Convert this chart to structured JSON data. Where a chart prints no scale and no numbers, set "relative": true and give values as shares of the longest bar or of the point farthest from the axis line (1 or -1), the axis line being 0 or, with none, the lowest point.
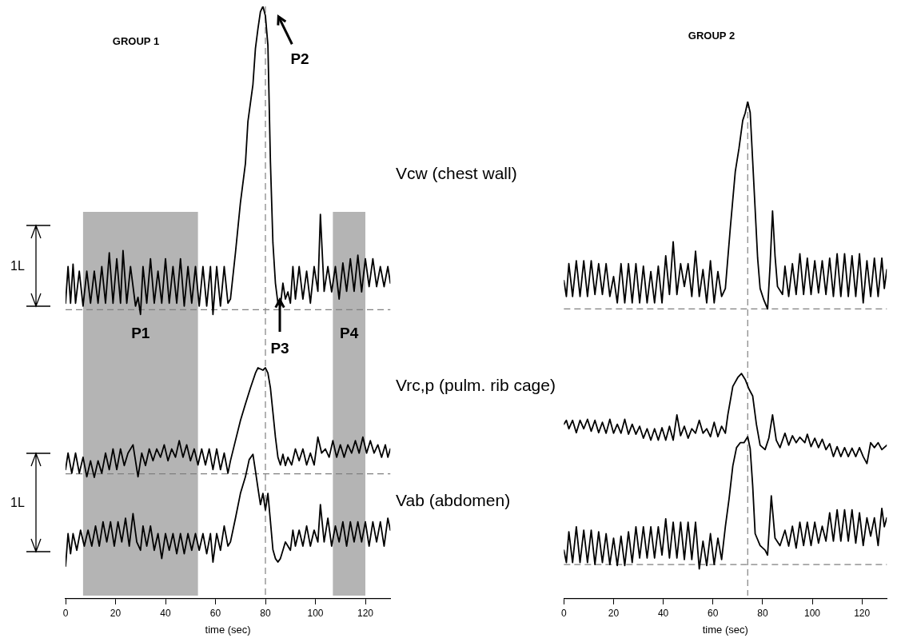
{
  "chart_data": [
    {
      "type": "line",
      "title": "GROUP 1",
      "xlabel": "time (sec)",
      "relative": true,
      "xlim": [
        0,
        130
      ],
      "xticks": [
        0,
        20,
        40,
        60,
        80,
        100,
        120
      ],
      "legend": false,
      "marker": "none",
      "line_style": "solid",
      "series": [
        {
          "name": "Vcw (chest wall)",
          "color": "#000000",
          "x": [
            0,
            1,
            2,
            3,
            4,
            5.5,
            7,
            8.5,
            10,
            11.5,
            13,
            14.5,
            16,
            17.5,
            19,
            20.5,
            22,
            23,
            24.5,
            26,
            28,
            29,
            30,
            31,
            32.5,
            34,
            35.5,
            37,
            38.5,
            40,
            41.5,
            43,
            44.5,
            46,
            47.5,
            49,
            50.5,
            52,
            53.5,
            55,
            56.5,
            58,
            59,
            60.5,
            62,
            63.5,
            65,
            66,
            68,
            70,
            72,
            73,
            75,
            76,
            77,
            78,
            79,
            80,
            81,
            82,
            83,
            84,
            85,
            86,
            87,
            88,
            89,
            90,
            91,
            92,
            93.5,
            95,
            96.5,
            98,
            99.5,
            101,
            102,
            103.5,
            105,
            106.5,
            108,
            109.5,
            111,
            112.5,
            114,
            115.5,
            117,
            118.5,
            120,
            121.5,
            123,
            124.5,
            126,
            127.5,
            129,
            130
          ],
          "values": [
            0.499,
            0.561,
            0.499,
            0.565,
            0.499,
            0.553,
            0.494,
            0.553,
            0.499,
            0.553,
            0.499,
            0.561,
            0.499,
            0.584,
            0.499,
            0.574,
            0.499,
            0.588,
            0.499,
            0.561,
            0.494,
            0.509,
            0.48,
            0.561,
            0.499,
            0.574,
            0.499,
            0.553,
            0.499,
            0.574,
            0.499,
            0.561,
            0.499,
            0.574,
            0.494,
            0.561,
            0.499,
            0.561,
            0.494,
            0.561,
            0.494,
            0.561,
            0.48,
            0.561,
            0.494,
            0.561,
            0.499,
            0.506,
            0.584,
            0.669,
            0.735,
            0.806,
            0.868,
            0.929,
            0.962,
            0.991,
            1,
            0.984,
            0.934,
            0.738,
            0.601,
            0.533,
            0.499,
            0.494,
            0.533,
            0.506,
            0.518,
            0.499,
            0.561,
            0.506,
            0.561,
            0.506,
            0.553,
            0.499,
            0.561,
            0.519,
            0.649,
            0.519,
            0.561,
            0.518,
            0.561,
            0.506,
            0.567,
            0.519,
            0.574,
            0.519,
            0.58,
            0.518,
            0.574,
            0.527,
            0.574,
            0.527,
            0.561,
            0.527,
            0.561,
            0.533
          ]
        },
        {
          "name": "Vrc,p (pulm. rib cage)",
          "color": "#000000",
          "x": [
            0,
            1,
            2.5,
            4,
            5.5,
            7,
            8.5,
            10,
            11.5,
            13,
            14.5,
            16,
            17.5,
            19,
            20.5,
            22,
            23.5,
            25,
            27,
            29,
            30.5,
            32,
            33.5,
            35,
            36.5,
            38,
            39.5,
            41,
            42.5,
            44,
            45.5,
            47,
            48.5,
            50,
            51.5,
            53,
            54.5,
            56,
            57.5,
            59,
            60.5,
            62,
            63.5,
            65,
            66,
            68,
            70,
            72,
            74,
            76,
            77,
            79,
            80,
            81,
            82,
            83,
            84,
            85,
            86,
            87,
            88,
            89,
            90.5,
            92,
            93.5,
            95,
            96.5,
            98,
            99.5,
            101,
            102.5,
            104,
            105.5,
            107,
            108.5,
            110,
            111.5,
            113,
            114.5,
            116,
            117.5,
            119,
            120.5,
            122,
            123.5,
            125,
            126.5,
            128,
            129,
            130
          ],
          "values": [
            0.218,
            0.246,
            0.212,
            0.246,
            0.212,
            0.239,
            0.206,
            0.233,
            0.205,
            0.233,
            0.212,
            0.246,
            0.218,
            0.253,
            0.218,
            0.253,
            0.225,
            0.246,
            0.26,
            0.206,
            0.246,
            0.225,
            0.253,
            0.233,
            0.253,
            0.239,
            0.26,
            0.233,
            0.253,
            0.239,
            0.267,
            0.239,
            0.26,
            0.233,
            0.253,
            0.226,
            0.253,
            0.226,
            0.253,
            0.218,
            0.253,
            0.218,
            0.246,
            0.212,
            0.233,
            0.267,
            0.301,
            0.329,
            0.356,
            0.381,
            0.39,
            0.386,
            0.39,
            0.381,
            0.356,
            0.315,
            0.273,
            0.239,
            0.226,
            0.244,
            0.225,
            0.239,
            0.226,
            0.253,
            0.233,
            0.253,
            0.226,
            0.246,
            0.226,
            0.273,
            0.246,
            0.253,
            0.239,
            0.267,
            0.239,
            0.26,
            0.239,
            0.26,
            0.246,
            0.267,
            0.246,
            0.273,
            0.246,
            0.267,
            0.246,
            0.26,
            0.239,
            0.26,
            0.239,
            0.253
          ]
        },
        {
          "name": "Vab (abdomen)",
          "color": "#000000",
          "x": [
            0,
            1,
            2,
            3,
            4.5,
            6,
            7.5,
            9,
            10.5,
            12,
            13.5,
            15,
            16.5,
            18,
            19.5,
            21,
            22.5,
            24,
            25.5,
            27,
            28.5,
            30,
            31,
            32.5,
            34,
            35.5,
            37,
            38.5,
            40,
            41.5,
            43,
            44.5,
            46,
            47.5,
            49,
            50.5,
            52,
            53.5,
            55,
            56.5,
            58,
            59,
            60.5,
            62,
            63.5,
            65,
            66,
            68,
            70,
            72,
            73.5,
            75,
            76,
            77,
            78,
            79,
            80,
            81,
            82,
            83,
            84,
            85,
            86,
            87,
            88,
            89,
            90,
            91,
            92,
            93.5,
            95,
            96.5,
            98,
            99.5,
            101,
            102,
            103.5,
            105,
            106.5,
            108,
            109.5,
            111,
            112.5,
            114,
            115.5,
            117,
            118.5,
            120,
            121.5,
            123,
            124.5,
            126,
            127.5,
            129,
            130
          ],
          "values": [
            0.055,
            0.11,
            0.076,
            0.11,
            0.082,
            0.116,
            0.089,
            0.116,
            0.089,
            0.123,
            0.089,
            0.13,
            0.096,
            0.13,
            0.089,
            0.13,
            0.096,
            0.136,
            0.089,
            0.144,
            0.096,
            0.082,
            0.123,
            0.089,
            0.123,
            0.082,
            0.11,
            0.068,
            0.11,
            0.082,
            0.11,
            0.076,
            0.11,
            0.076,
            0.11,
            0.082,
            0.11,
            0.082,
            0.11,
            0.076,
            0.11,
            0.062,
            0.11,
            0.082,
            0.123,
            0.089,
            0.096,
            0.136,
            0.178,
            0.206,
            0.235,
            0.244,
            0.216,
            0.187,
            0.159,
            0.178,
            0.15,
            0.178,
            0.131,
            0.083,
            0.068,
            0.062,
            0.068,
            0.082,
            0.096,
            0.089,
            0.082,
            0.116,
            0.089,
            0.116,
            0.089,
            0.123,
            0.089,
            0.116,
            0.096,
            0.159,
            0.096,
            0.136,
            0.089,
            0.123,
            0.096,
            0.13,
            0.089,
            0.13,
            0.096,
            0.13,
            0.096,
            0.13,
            0.089,
            0.13,
            0.096,
            0.13,
            0.089,
            0.136,
            0.116
          ]
        }
      ],
      "ref_lines": [
        {
          "axis": "x",
          "value": 80,
          "color": "#808080",
          "line_style": "dashed"
        },
        {
          "axis": "y",
          "value": 0.488,
          "color": "#808080",
          "line_style": "dashed"
        },
        {
          "axis": "y",
          "value": 0.211,
          "color": "#808080",
          "line_style": "dashed"
        }
      ],
      "bands": [
        {
          "axis": "x",
          "from": 7,
          "to": 53,
          "label": "P1",
          "color": "#b4b4b4"
        },
        {
          "axis": "x",
          "from": 107,
          "to": 120,
          "label": "P4",
          "color": "#b4b4b4"
        }
      ],
      "annotations": [
        "P2",
        "P3",
        "1L",
        "1L"
      ]
    },
    {
      "type": "line",
      "title": "GROUP 2",
      "xlabel": "time (sec)",
      "relative": true,
      "xlim": [
        0,
        130
      ],
      "xticks": [
        0,
        20,
        40,
        60,
        80,
        100,
        120
      ],
      "legend": false,
      "marker": "none",
      "line_style": "solid",
      "series": [
        {
          "color": "#000000",
          "x": [
            0,
            1,
            2,
            3.5,
            5,
            6.5,
            8,
            9.5,
            11,
            12.5,
            14,
            15.5,
            17,
            18.5,
            20,
            21.5,
            23,
            24.5,
            26,
            27.5,
            29,
            30.5,
            32,
            33.5,
            35,
            36.5,
            38,
            39.5,
            41,
            42.5,
            44,
            45.5,
            47,
            48.5,
            50,
            51.5,
            53,
            54.5,
            56,
            57.5,
            59,
            60.5,
            62,
            63.5,
            65,
            67,
            69,
            70.5,
            72,
            73,
            74,
            75,
            76,
            77,
            78,
            79,
            80.5,
            82,
            83,
            84,
            85,
            86,
            88,
            89,
            90.5,
            92,
            93.5,
            95,
            96.5,
            98,
            99.5,
            101,
            102.5,
            104,
            105.5,
            107,
            108.5,
            110,
            111.5,
            113,
            114.5,
            116,
            117.5,
            119,
            120.5,
            122,
            123.5,
            125,
            126.5,
            128,
            129,
            130
          ],
          "values": [
            0.64,
            0.608,
            0.674,
            0.608,
            0.68,
            0.608,
            0.68,
            0.608,
            0.68,
            0.612,
            0.674,
            0.612,
            0.674,
            0.608,
            0.648,
            0.595,
            0.674,
            0.595,
            0.674,
            0.595,
            0.674,
            0.595,
            0.669,
            0.595,
            0.658,
            0.595,
            0.669,
            0.595,
            0.69,
            0.612,
            0.718,
            0.612,
            0.674,
            0.628,
            0.674,
            0.608,
            0.699,
            0.608,
            0.662,
            0.595,
            0.68,
            0.595,
            0.658,
            0.608,
            0.624,
            0.746,
            0.859,
            0.906,
            0.962,
            0.977,
            1,
            0.978,
            0.881,
            0.783,
            0.685,
            0.624,
            0.601,
            0.583,
            0.669,
            0.78,
            0.69,
            0.628,
            0.612,
            0.669,
            0.608,
            0.674,
            0.612,
            0.694,
            0.612,
            0.685,
            0.612,
            0.68,
            0.615,
            0.68,
            0.612,
            0.685,
            0.608,
            0.694,
            0.608,
            0.694,
            0.608,
            0.69,
            0.608,
            0.694,
            0.595,
            0.68,
            0.608,
            0.685,
            0.608,
            0.685,
            0.624,
            0.662
          ]
        },
        {
          "color": "#000000",
          "x": [
            0,
            1,
            2,
            3.5,
            5,
            6.5,
            8,
            9.5,
            11,
            12.5,
            14,
            15.5,
            17,
            18.5,
            20,
            21.5,
            23,
            24.5,
            26,
            27.5,
            29,
            30.5,
            32,
            33.5,
            35,
            36.5,
            38,
            39.5,
            41,
            42.5,
            44,
            45.5,
            47,
            48.5,
            50,
            51.5,
            53,
            54.5,
            56,
            57.5,
            59,
            60.5,
            62,
            63.5,
            65,
            66,
            68,
            70,
            71.5,
            73,
            74.5,
            76,
            77.5,
            79,
            81,
            82.5,
            84,
            85.5,
            87,
            89,
            90.5,
            92,
            93.5,
            95,
            97,
            98,
            99.5,
            101,
            102.5,
            104,
            105.5,
            107,
            108.5,
            110,
            111.5,
            113,
            114.5,
            116,
            117.5,
            119,
            120.5,
            122,
            123.5,
            125,
            126.5,
            128,
            130
          ],
          "values": [
            0.351,
            0.359,
            0.342,
            0.359,
            0.334,
            0.359,
            0.342,
            0.361,
            0.337,
            0.359,
            0.334,
            0.355,
            0.333,
            0.361,
            0.333,
            0.351,
            0.333,
            0.361,
            0.331,
            0.351,
            0.331,
            0.347,
            0.323,
            0.342,
            0.319,
            0.342,
            0.319,
            0.344,
            0.319,
            0.347,
            0.319,
            0.37,
            0.328,
            0.347,
            0.323,
            0.342,
            0.333,
            0.359,
            0.333,
            0.342,
            0.326,
            0.355,
            0.326,
            0.347,
            0.333,
            0.37,
            0.427,
            0.445,
            0.453,
            0.441,
            0.422,
            0.408,
            0.351,
            0.309,
            0.3,
            0.323,
            0.37,
            0.319,
            0.304,
            0.333,
            0.309,
            0.328,
            0.314,
            0.325,
            0.314,
            0.331,
            0.306,
            0.323,
            0.304,
            0.321,
            0.3,
            0.312,
            0.286,
            0.306,
            0.286,
            0.304,
            0.286,
            0.303,
            0.286,
            0.304,
            0.286,
            0.272,
            0.314,
            0.304,
            0.314,
            0.3,
            0.309
          ]
        },
        {
          "color": "#000000",
          "x": [
            0,
            1,
            2,
            3.5,
            5,
            6.5,
            8,
            9.5,
            11,
            12.5,
            14,
            15.5,
            17,
            18.5,
            20,
            21.5,
            23,
            24.5,
            26,
            27.5,
            29,
            30.5,
            32,
            33.5,
            35,
            36.5,
            38,
            39.5,
            41,
            42.5,
            44,
            45.5,
            47,
            48.5,
            50,
            51.5,
            53,
            54.5,
            56,
            57.5,
            59,
            60.5,
            62,
            63.5,
            65,
            66.5,
            68,
            69.5,
            71,
            72.5,
            74,
            75,
            76,
            77,
            79,
            81,
            82,
            83.5,
            85,
            87,
            89,
            90.5,
            92,
            93.5,
            95,
            96.5,
            98,
            99.5,
            101,
            102.5,
            104,
            105.5,
            107,
            108.5,
            110,
            111.5,
            113,
            114.5,
            116,
            117.5,
            119,
            120.5,
            122,
            123.5,
            125,
            126.5,
            128,
            129,
            130
          ],
          "values": [
            0.098,
            0.073,
            0.135,
            0.073,
            0.145,
            0.073,
            0.138,
            0.073,
            0.138,
            0.069,
            0.135,
            0.073,
            0.131,
            0.069,
            0.122,
            0.067,
            0.126,
            0.067,
            0.135,
            0.073,
            0.145,
            0.082,
            0.145,
            0.082,
            0.145,
            0.082,
            0.145,
            0.088,
            0.161,
            0.082,
            0.154,
            0.082,
            0.154,
            0.079,
            0.154,
            0.079,
            0.154,
            0.06,
            0.116,
            0.067,
            0.131,
            0.069,
            0.122,
            0.079,
            0.145,
            0.201,
            0.267,
            0.304,
            0.314,
            0.314,
            0.326,
            0.302,
            0.228,
            0.131,
            0.107,
            0.098,
            0.088,
            0.207,
            0.122,
            0.107,
            0.138,
            0.106,
            0.146,
            0.102,
            0.154,
            0.107,
            0.154,
            0.107,
            0.154,
            0.112,
            0.146,
            0.116,
            0.173,
            0.116,
            0.179,
            0.116,
            0.179,
            0.116,
            0.179,
            0.112,
            0.173,
            0.107,
            0.163,
            0.126,
            0.163,
            0.107,
            0.182,
            0.145,
            0.163
          ]
        }
      ],
      "ref_lines": [
        {
          "axis": "x",
          "value": 74,
          "color": "#808080",
          "line_style": "dashed"
        },
        {
          "axis": "y",
          "value": 0.583,
          "color": "#808080",
          "line_style": "dashed"
        },
        {
          "axis": "y",
          "value": 0.069,
          "color": "#808080",
          "line_style": "dashed"
        }
      ]
    }
  ]
}
